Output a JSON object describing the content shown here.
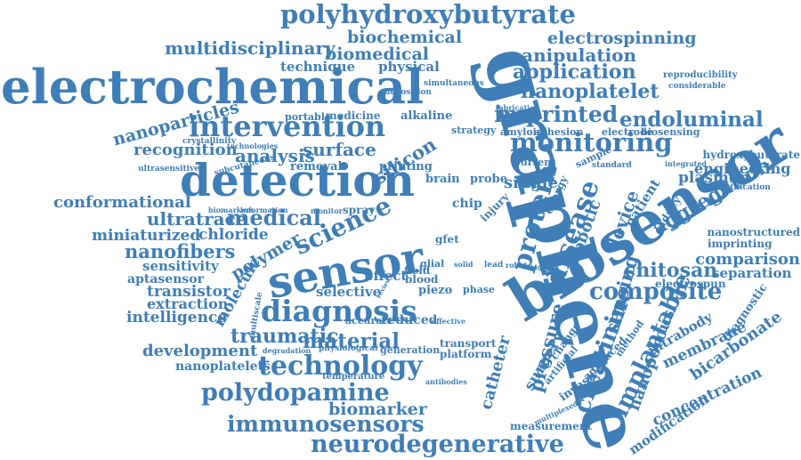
{
  "color": "#3f7eb6",
  "words": [
    "polyhydroxybutyrate",
    "biochemical",
    "multidisciplinary",
    "biomedical",
    "electrospinning",
    "manipulation",
    "electrochemical",
    "technique",
    "physical",
    "application",
    "simultaneous",
    "reproducibility",
    "considerable",
    "nanoplatelet",
    "deposition",
    "fabrication",
    "imprinted",
    "endoluminal",
    "nanoparticles",
    "intervention",
    "portable",
    "medicine",
    "alkaline",
    "strategy",
    "amyloid",
    "adhesion",
    "electrode",
    "biosensing",
    "crystallinity",
    "technologies",
    "recognition",
    "analysis",
    "surface",
    "silicon",
    "monitoring",
    "hydroxybutyrate",
    "ultrasensitive",
    "subcutaneous",
    "removal",
    "printing",
    "current",
    "sample",
    "standard",
    "integrated",
    "engineering",
    "detection",
    "conformational",
    "single",
    "brain",
    "probe",
    "plasmon",
    "quantification",
    "biomarkers",
    "information",
    "monitor",
    "spray",
    "patient",
    "kidney",
    "aggregation",
    "ultratrace",
    "medical",
    "chip",
    "injury",
    "energy",
    "nanostructured",
    "miniaturized",
    "chloride",
    "science",
    "graphene",
    "biosensor",
    "imprinting",
    "nanofibers",
    "polymer",
    "sensor",
    "gfet",
    "protein",
    "disease",
    "robotic",
    "device",
    "comparison",
    "sensitivity",
    "glial",
    "field",
    "chitosan",
    "separation",
    "aptasensor",
    "molecule",
    "effect",
    "solid",
    "lead",
    "robot",
    "higher",
    "electrospun",
    "transistor",
    "selective",
    "blood",
    "piezo",
    "phase",
    "composite",
    "extraction",
    "diagnosis",
    "review",
    "intelligence",
    "multiscale",
    "accurate",
    "reduced",
    "sensing",
    "pressure",
    "creatinine",
    "implantable",
    "intrabody",
    "diagnostic",
    "traumatic",
    "material",
    "transport",
    "effective",
    "development",
    "degradation",
    "physiological",
    "generation",
    "catheter",
    "surgery",
    "change",
    "nanoporous",
    "membrane",
    "bicarbonate",
    "nanoplatelets",
    "technology",
    "platform",
    "artificial",
    "advanced",
    "method",
    "modification",
    "temperature",
    "antibodies",
    "polydopamine",
    "invasive",
    "concentration",
    "biomarker",
    "multiplexed",
    "immunosensors",
    "measurement",
    "neurodegenerative"
  ]
}
